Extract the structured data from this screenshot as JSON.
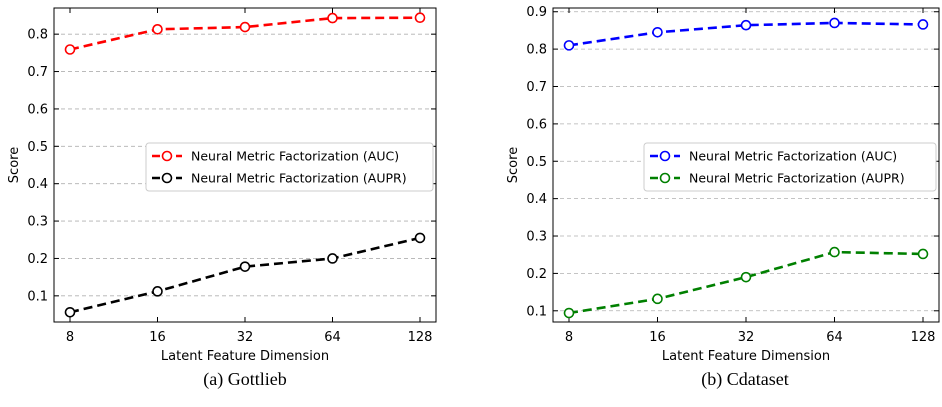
{
  "chart_data": [
    {
      "type": "line",
      "caption": "(a) Gottlieb",
      "categories": [
        "8",
        "16",
        "32",
        "64",
        "128"
      ],
      "xlabel": "Latent Feature Dimension",
      "ylabel": "Score",
      "ylim": [
        0.03,
        0.87
      ],
      "yticks": [
        "0.1",
        "0.2",
        "0.3",
        "0.4",
        "0.5",
        "0.6",
        "0.7",
        "0.8"
      ],
      "grid": "horizontal dashed",
      "legend_position": "center-right",
      "series": [
        {
          "name": "Neural Metric Factorization (AUC)",
          "color": "#ff0000",
          "values": [
            0.759,
            0.813,
            0.819,
            0.843,
            0.844
          ]
        },
        {
          "name": "Neural Metric Factorization (AUPR)",
          "color": "#000000",
          "values": [
            0.056,
            0.112,
            0.178,
            0.2,
            0.255
          ]
        }
      ]
    },
    {
      "type": "line",
      "caption": "(b) Cdataset",
      "categories": [
        "8",
        "16",
        "32",
        "64",
        "128"
      ],
      "xlabel": "Latent Feature Dimension",
      "ylabel": "Score",
      "ylim": [
        0.07,
        0.91
      ],
      "yticks": [
        "0.1",
        "0.2",
        "0.3",
        "0.4",
        "0.5",
        "0.6",
        "0.7",
        "0.8",
        "0.9"
      ],
      "grid": "horizontal dashed",
      "legend_position": "center-right",
      "series": [
        {
          "name": "Neural Metric Factorization (AUC)",
          "color": "#0000ff",
          "values": [
            0.81,
            0.845,
            0.864,
            0.87,
            0.866
          ]
        },
        {
          "name": "Neural Metric Factorization (AUPR)",
          "color": "#008000",
          "values": [
            0.094,
            0.132,
            0.19,
            0.257,
            0.252
          ]
        }
      ]
    }
  ]
}
